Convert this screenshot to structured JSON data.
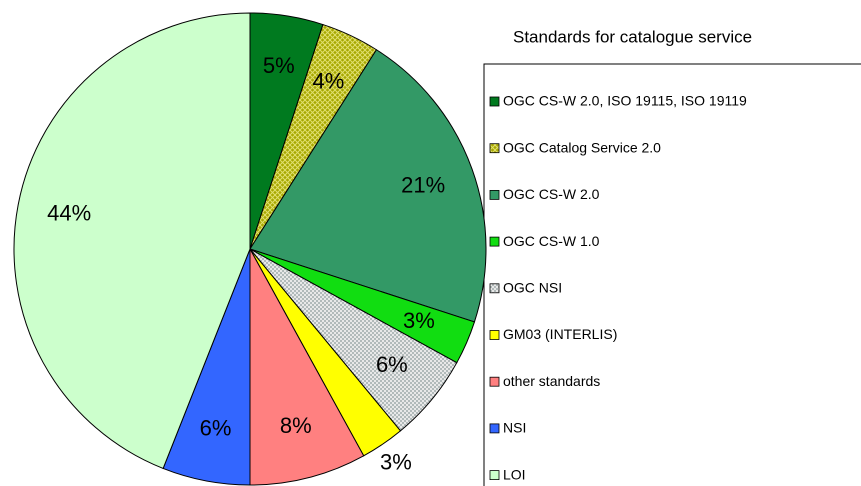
{
  "chart_data": {
    "type": "pie",
    "title": "Standards for catalogue service",
    "categories": [
      "OGC CS-W 2.0, ISO 19115, ISO 19119",
      "OGC Catalog Service 2.0",
      "OGC CS-W 2.0",
      "OGC CS-W 1.0",
      "OGC NSI",
      "GM03 (INTERLIS)",
      "other standards",
      "NSI",
      "LOI"
    ],
    "values": [
      5,
      4,
      21,
      3,
      6,
      3,
      8,
      6,
      44
    ],
    "value_labels": [
      "5%",
      "4%",
      "21%",
      "3%",
      "6%",
      "3%",
      "8%",
      "6%",
      "44%"
    ],
    "colors": [
      "#007a1f",
      "#a8a800",
      "#339966",
      "#11dd11",
      "#d8d8d8",
      "#ffff00",
      "#ff8080",
      "#3366ff",
      "#ccffcc"
    ],
    "patterns": [
      null,
      "hatch",
      null,
      null,
      "dots",
      null,
      null,
      null,
      null
    ],
    "legend": "right"
  }
}
